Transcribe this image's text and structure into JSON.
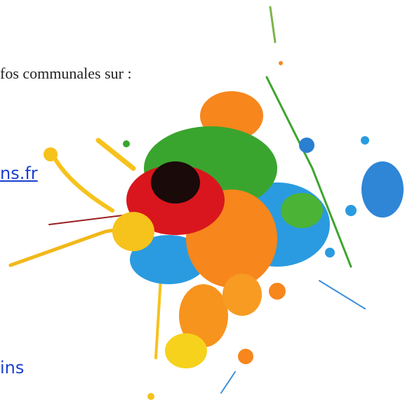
{
  "document": {
    "lines": [
      "fos communales sur :",
      "ns.fr",
      "ins"
    ]
  }
}
